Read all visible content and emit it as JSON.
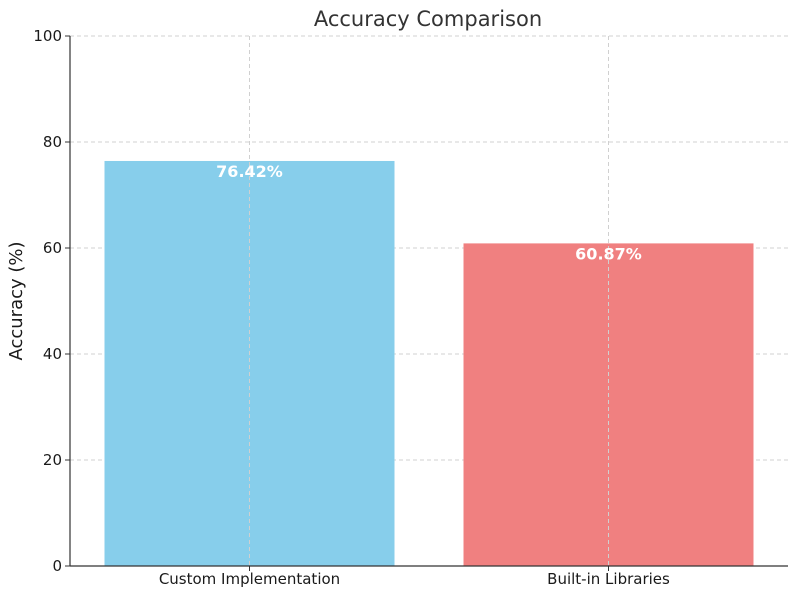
{
  "chart_data": {
    "type": "bar",
    "title": "Accuracy Comparison",
    "xlabel": "",
    "ylabel": "Accuracy (%)",
    "categories": [
      "Custom Implementation",
      "Built-in Libraries"
    ],
    "values": [
      76.42,
      60.87
    ],
    "value_labels": [
      "76.42%",
      "60.87%"
    ],
    "colors": [
      "#87CEEB",
      "#F08080"
    ],
    "ylim": [
      0,
      100
    ],
    "yticks": [
      0,
      20,
      40,
      60,
      80,
      100
    ],
    "grid": true,
    "legend": "none"
  }
}
